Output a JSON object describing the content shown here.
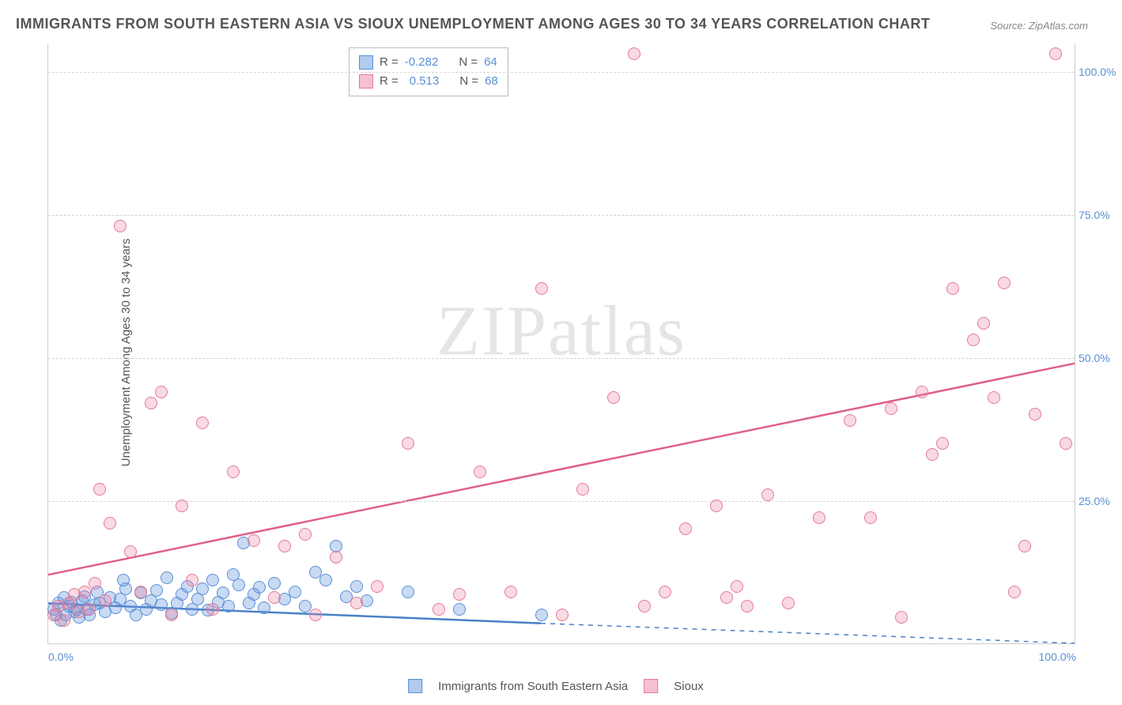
{
  "title": "IMMIGRANTS FROM SOUTH EASTERN ASIA VS SIOUX UNEMPLOYMENT AMONG AGES 30 TO 34 YEARS CORRELATION CHART",
  "source": "Source: ZipAtlas.com",
  "watermark": "ZIPatlas",
  "y_axis_label": "Unemployment Among Ages 30 to 34 years",
  "chart": {
    "type": "scatter",
    "xlim": [
      0,
      100
    ],
    "ylim": [
      0,
      105
    ],
    "y_ticks": [
      25,
      50,
      75,
      100
    ],
    "y_tick_labels": [
      "25.0%",
      "50.0%",
      "75.0%",
      "100.0%"
    ],
    "x_tick_left": "0.0%",
    "x_tick_right": "100.0%",
    "background_color": "#ffffff",
    "grid_color": "#d5d5d5",
    "series": [
      {
        "name": "Immigrants from South Eastern Asia",
        "color_fill": "rgba(100,150,220,0.35)",
        "color_stroke": "#5a8fd6",
        "marker_size": 16,
        "r_value": "-0.282",
        "n_value": "64",
        "trend": {
          "x1": 0,
          "y1": 7,
          "x2": 48,
          "y2": 3.5,
          "x2_dash": 100,
          "y2_dash": 0,
          "color": "#4a80c8",
          "width": 2.5
        },
        "points": [
          [
            0.5,
            6
          ],
          [
            0.8,
            5
          ],
          [
            1,
            7
          ],
          [
            1.2,
            4
          ],
          [
            1.5,
            8
          ],
          [
            1.7,
            5
          ],
          [
            2,
            6.5
          ],
          [
            2.2,
            7.2
          ],
          [
            2.5,
            5.5
          ],
          [
            2.8,
            6
          ],
          [
            3,
            4.5
          ],
          [
            3.3,
            7.5
          ],
          [
            3.5,
            8.2
          ],
          [
            3.8,
            6
          ],
          [
            4,
            5
          ],
          [
            4.5,
            6.8
          ],
          [
            4.8,
            9
          ],
          [
            5,
            7
          ],
          [
            5.5,
            5.5
          ],
          [
            6,
            8
          ],
          [
            6.5,
            6.2
          ],
          [
            7,
            7.8
          ],
          [
            7.3,
            11
          ],
          [
            7.5,
            9.5
          ],
          [
            8,
            6.5
          ],
          [
            8.5,
            5
          ],
          [
            9,
            8.8
          ],
          [
            9.5,
            6
          ],
          [
            10,
            7.5
          ],
          [
            10.5,
            9.2
          ],
          [
            11,
            6.8
          ],
          [
            11.5,
            11.5
          ],
          [
            12,
            5.2
          ],
          [
            12.5,
            7
          ],
          [
            13,
            8.5
          ],
          [
            13.5,
            10
          ],
          [
            14,
            6
          ],
          [
            14.5,
            7.8
          ],
          [
            15,
            9.5
          ],
          [
            15.5,
            5.8
          ],
          [
            16,
            11
          ],
          [
            16.5,
            7.2
          ],
          [
            17,
            8.8
          ],
          [
            17.5,
            6.5
          ],
          [
            18,
            12
          ],
          [
            18.5,
            10.2
          ],
          [
            19,
            17.5
          ],
          [
            19.5,
            7
          ],
          [
            20,
            8.5
          ],
          [
            20.5,
            9.8
          ],
          [
            21,
            6.2
          ],
          [
            22,
            10.5
          ],
          [
            23,
            7.8
          ],
          [
            24,
            9
          ],
          [
            25,
            6.5
          ],
          [
            26,
            12.5
          ],
          [
            27,
            11
          ],
          [
            28,
            17
          ],
          [
            29,
            8.2
          ],
          [
            30,
            10
          ],
          [
            31,
            7.5
          ],
          [
            35,
            9
          ],
          [
            40,
            6
          ],
          [
            48,
            5
          ]
        ]
      },
      {
        "name": "Sioux",
        "color_fill": "rgba(235,130,160,0.3)",
        "color_stroke": "#e47a9a",
        "marker_size": 16,
        "r_value": "0.513",
        "n_value": "68",
        "trend": {
          "x1": 0,
          "y1": 12,
          "x2": 100,
          "y2": 49,
          "color": "#e06088",
          "width": 2.5
        },
        "points": [
          [
            0.5,
            5
          ],
          [
            1,
            6.5
          ],
          [
            1.5,
            4
          ],
          [
            2,
            7
          ],
          [
            2.5,
            8.5
          ],
          [
            3,
            5.5
          ],
          [
            3.5,
            9
          ],
          [
            4,
            6
          ],
          [
            4.5,
            10.5
          ],
          [
            5,
            27
          ],
          [
            5.5,
            7.5
          ],
          [
            6,
            21
          ],
          [
            7,
            73
          ],
          [
            8,
            16
          ],
          [
            9,
            9
          ],
          [
            10,
            42
          ],
          [
            11,
            44
          ],
          [
            12,
            5
          ],
          [
            13,
            24
          ],
          [
            14,
            11
          ],
          [
            15,
            38.5
          ],
          [
            16,
            6
          ],
          [
            18,
            30
          ],
          [
            20,
            18
          ],
          [
            22,
            8
          ],
          [
            23,
            17
          ],
          [
            25,
            19
          ],
          [
            26,
            5
          ],
          [
            28,
            15
          ],
          [
            30,
            7
          ],
          [
            32,
            10
          ],
          [
            35,
            35
          ],
          [
            38,
            6
          ],
          [
            40,
            8.5
          ],
          [
            42,
            30
          ],
          [
            45,
            9
          ],
          [
            48,
            62
          ],
          [
            50,
            5
          ],
          [
            52,
            27
          ],
          [
            55,
            43
          ],
          [
            57,
            103
          ],
          [
            58,
            6.5
          ],
          [
            60,
            9
          ],
          [
            62,
            20
          ],
          [
            65,
            24
          ],
          [
            66,
            8
          ],
          [
            67,
            10
          ],
          [
            68,
            6.5
          ],
          [
            70,
            26
          ],
          [
            72,
            7
          ],
          [
            75,
            22
          ],
          [
            78,
            39
          ],
          [
            80,
            22
          ],
          [
            82,
            41
          ],
          [
            83,
            4.5
          ],
          [
            85,
            44
          ],
          [
            86,
            33
          ],
          [
            87,
            35
          ],
          [
            88,
            62
          ],
          [
            90,
            53
          ],
          [
            91,
            56
          ],
          [
            92,
            43
          ],
          [
            93,
            63
          ],
          [
            94,
            9
          ],
          [
            95,
            17
          ],
          [
            96,
            40
          ],
          [
            98,
            103
          ],
          [
            99,
            35
          ]
        ]
      }
    ]
  },
  "legend_stats": {
    "r_label": "R =",
    "n_label": "N ="
  },
  "bottom_legend": {
    "series1": "Immigrants from South Eastern Asia",
    "series2": "Sioux"
  }
}
